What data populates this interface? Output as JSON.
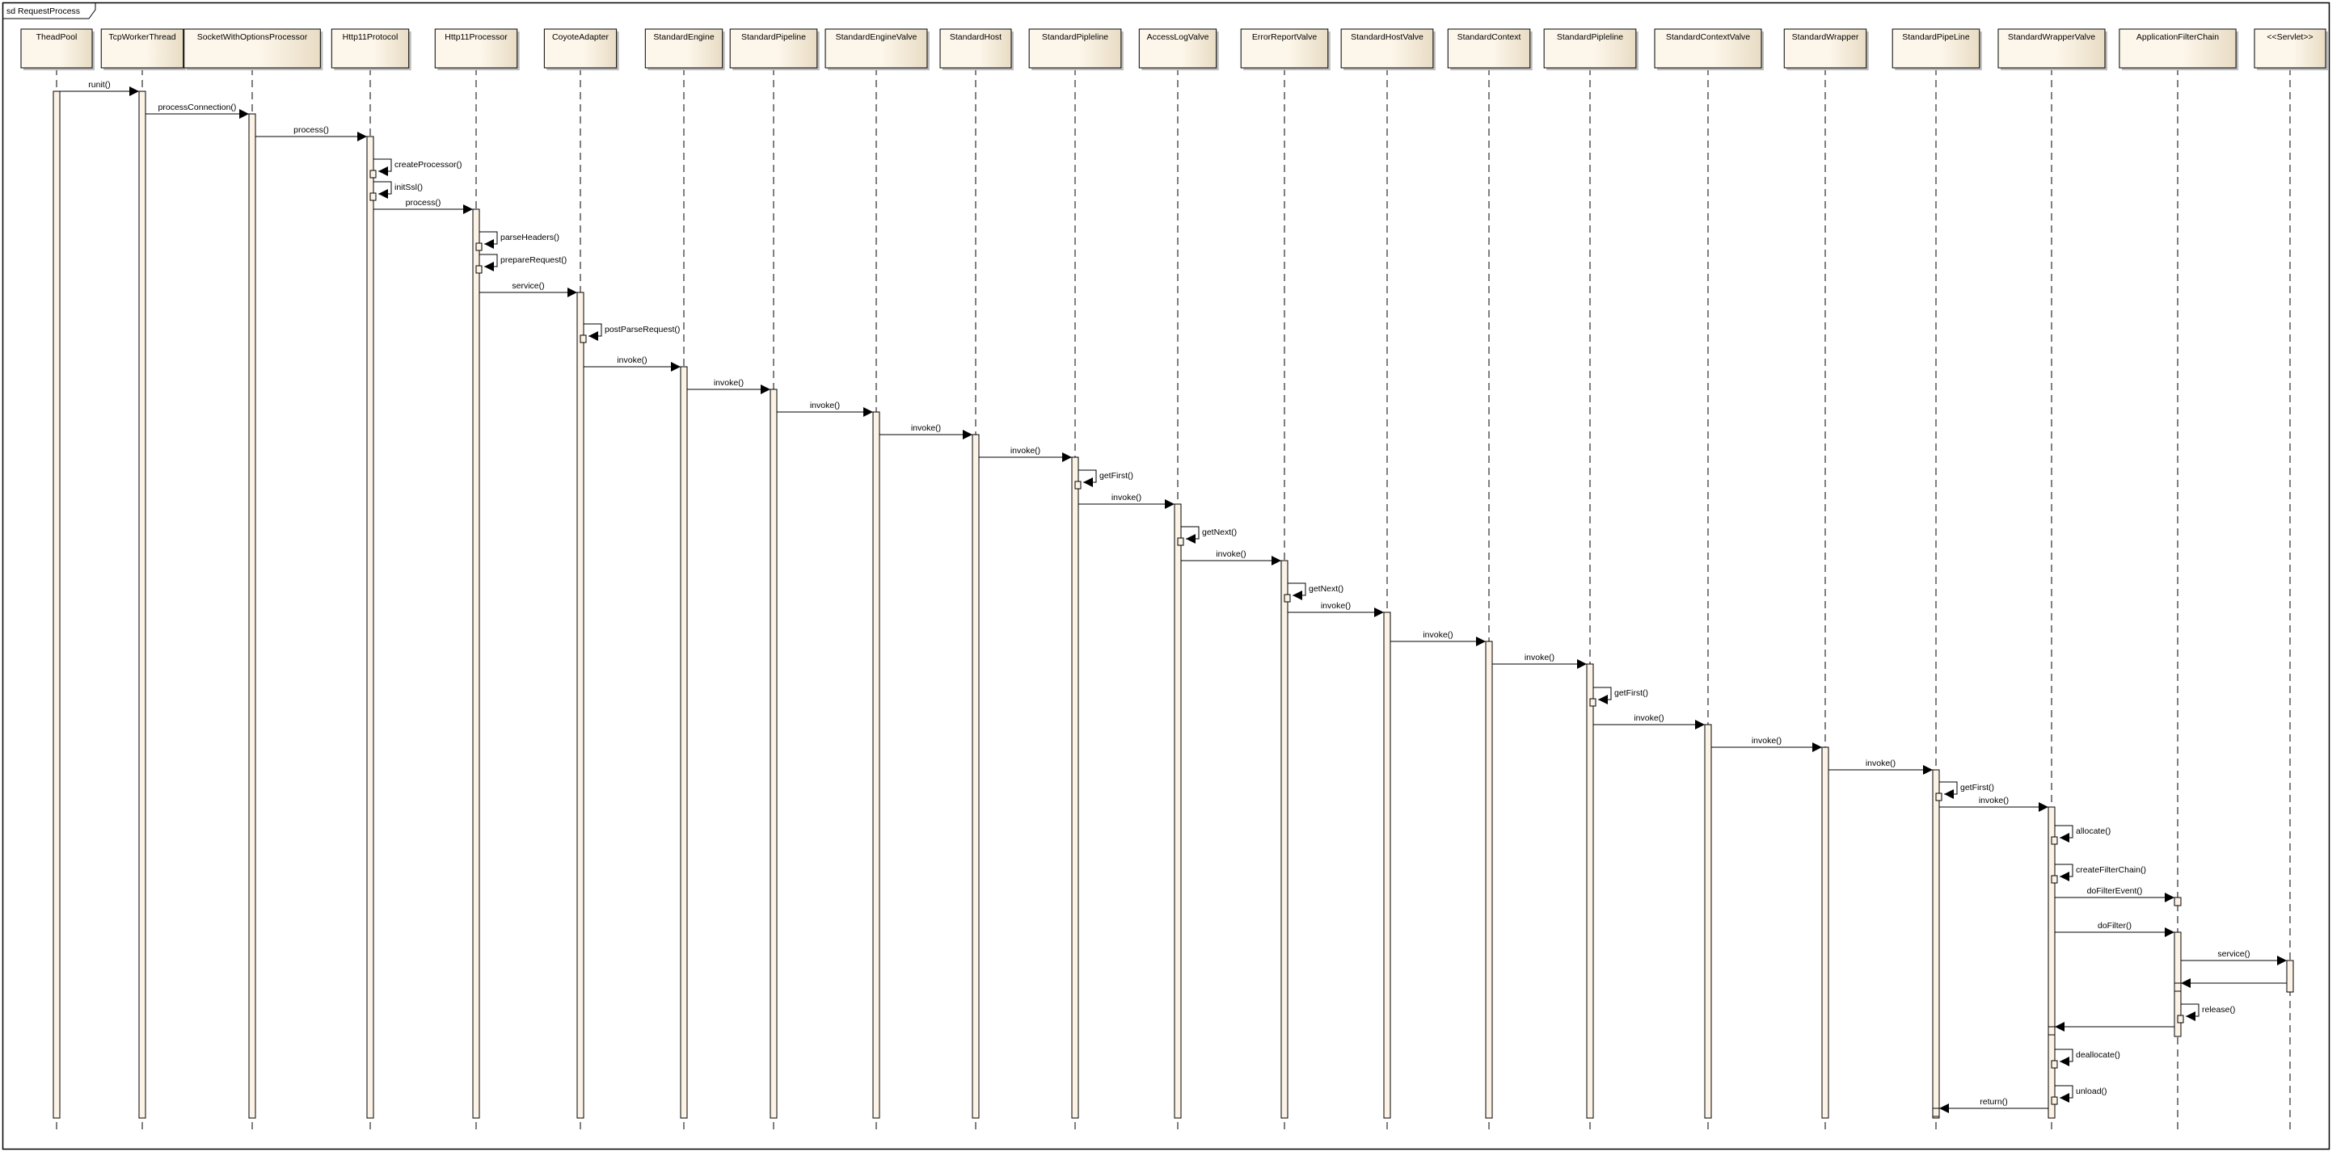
{
  "diagram": {
    "type": "sequence",
    "frame_title": "sd RequestProcess",
    "colors": {
      "box_fill_light": "#fdf6ea",
      "box_fill_dark": "#e8dcc4",
      "activation_fill": "#fcf3e6",
      "line": "#000000"
    },
    "participants": [
      "TheadPool",
      "TcpWorkerThread",
      "SocketWithOptionsProcessor",
      "Http11Protocol",
      "Http11Processor",
      "CoyoteAdapter",
      "StandardEngine",
      "StandardPipeline",
      "StandardEngineValve",
      "StandardHost",
      "StandardPipleline",
      "AccessLogValve",
      "ErrorReportValve",
      "StandardHostValve",
      "StandardContext",
      "StandardPipleline",
      "StandardContextValve",
      "StandardWrapper",
      "StandardPipeLine",
      "StandardWrapperValve",
      "ApplicationFilterChain",
      "<<Servlet>>"
    ],
    "messages": [
      {
        "from": 0,
        "to": 1,
        "label": "runit()"
      },
      {
        "from": 1,
        "to": 2,
        "label": "processConnection()"
      },
      {
        "from": 2,
        "to": 3,
        "label": "process()"
      },
      {
        "from": 3,
        "to": 3,
        "label": "createProcessor()"
      },
      {
        "from": 3,
        "to": 3,
        "label": "initSsl()"
      },
      {
        "from": 3,
        "to": 4,
        "label": "process()"
      },
      {
        "from": 4,
        "to": 4,
        "label": "parseHeaders()"
      },
      {
        "from": 4,
        "to": 4,
        "label": "prepareRequest()"
      },
      {
        "from": 4,
        "to": 5,
        "label": "service()"
      },
      {
        "from": 5,
        "to": 5,
        "label": "postParseRequest()"
      },
      {
        "from": 5,
        "to": 6,
        "label": "invoke()"
      },
      {
        "from": 6,
        "to": 7,
        "label": "invoke()"
      },
      {
        "from": 7,
        "to": 8,
        "label": "invoke()"
      },
      {
        "from": 8,
        "to": 9,
        "label": "invoke()"
      },
      {
        "from": 9,
        "to": 10,
        "label": "invoke()"
      },
      {
        "from": 10,
        "to": 10,
        "label": "getFirst()"
      },
      {
        "from": 10,
        "to": 11,
        "label": "invoke()"
      },
      {
        "from": 11,
        "to": 11,
        "label": "getNext()"
      },
      {
        "from": 11,
        "to": 12,
        "label": "invoke()"
      },
      {
        "from": 12,
        "to": 12,
        "label": "getNext()"
      },
      {
        "from": 12,
        "to": 13,
        "label": "invoke()"
      },
      {
        "from": 13,
        "to": 14,
        "label": "invoke()"
      },
      {
        "from": 14,
        "to": 15,
        "label": "invoke()"
      },
      {
        "from": 15,
        "to": 15,
        "label": "getFirst()"
      },
      {
        "from": 15,
        "to": 16,
        "label": "invoke()"
      },
      {
        "from": 16,
        "to": 17,
        "label": "invoke()"
      },
      {
        "from": 17,
        "to": 18,
        "label": "invoke()"
      },
      {
        "from": 18,
        "to": 18,
        "label": "getFirst()"
      },
      {
        "from": 18,
        "to": 19,
        "label": "invoke()"
      },
      {
        "from": 19,
        "to": 19,
        "label": "allocate()"
      },
      {
        "from": 19,
        "to": 19,
        "label": "createFilterChain()"
      },
      {
        "from": 19,
        "to": 20,
        "label": "doFilterEvent()"
      },
      {
        "from": 19,
        "to": 20,
        "label": "doFilter()"
      },
      {
        "from": 20,
        "to": 21,
        "label": "service()"
      },
      {
        "from": 21,
        "to": 20,
        "label": ""
      },
      {
        "from": 20,
        "to": 20,
        "label": "release()"
      },
      {
        "from": 20,
        "to": 19,
        "label": ""
      },
      {
        "from": 19,
        "to": 19,
        "label": "deallocate()"
      },
      {
        "from": 19,
        "to": 19,
        "label": "unload()"
      },
      {
        "from": 19,
        "to": 18,
        "label": "return()"
      }
    ]
  }
}
